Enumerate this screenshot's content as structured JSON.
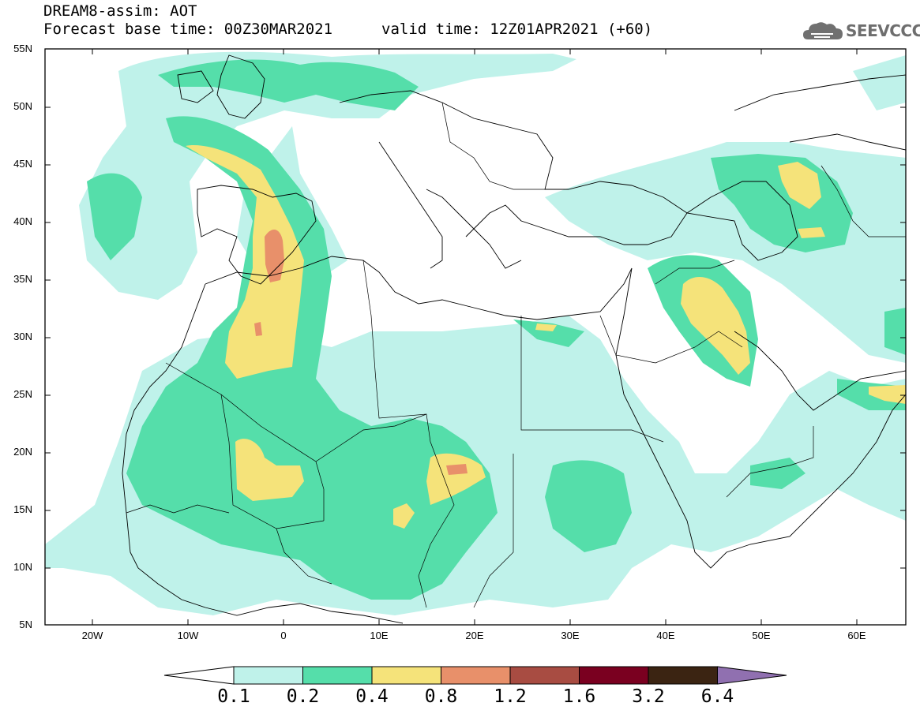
{
  "header": {
    "line1": "DREAM8-assim: AOT",
    "line2": "Forecast base time: 00Z30MAR2021",
    "line3": "valid time: 12Z01APR2021 (+60)"
  },
  "logo": {
    "text": "SEEVCCC",
    "icon": "cloud-icon"
  },
  "map": {
    "lat_labels": [
      "55N",
      "50N",
      "45N",
      "40N",
      "35N",
      "30N",
      "25N",
      "20N",
      "15N",
      "10N",
      "5N"
    ],
    "lon_labels": [
      "20W",
      "10W",
      "0",
      "10E",
      "20E",
      "30E",
      "40E",
      "50E",
      "60E"
    ]
  },
  "colorbar": {
    "labels": [
      "0.1",
      "0.2",
      "0.4",
      "0.8",
      "1.2",
      "1.6",
      "3.2",
      "6.4"
    ],
    "colors": [
      "#ffffff",
      "#bff2ea",
      "#55deaa",
      "#f5e37a",
      "#e8906a",
      "#a84c42",
      "#7a0020",
      "#3b2412",
      "#9070b0"
    ]
  }
}
